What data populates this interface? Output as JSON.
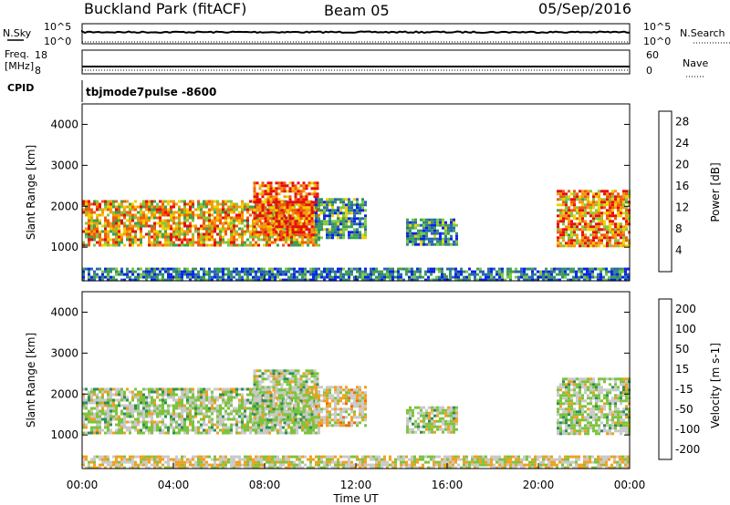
{
  "header": {
    "station": "Buckland Park (fitACF)",
    "beam": "Beam 05",
    "date": "05/Sep/2016"
  },
  "top_panels": {
    "nsky_label": "N.Sky",
    "nsky_scale_top": "10^5",
    "nsky_scale_bottom": "10^0",
    "nsearch_label": "N.Search",
    "freq_label_1": "Freq.",
    "freq_label_2": "[MHz]",
    "freq_scale_top": "18",
    "freq_scale_bottom": "8",
    "nave_label": "Nave",
    "nave_scale_top": "60",
    "nave_scale_bottom": "0",
    "cpid_label": "CPID",
    "cpid_value": "tbjmode7pulse -8600"
  },
  "chart_data": [
    {
      "type": "heatmap",
      "panel": "power",
      "ylabel": "Slant Range [km]",
      "ylim": [
        180,
        4500
      ],
      "yticks": [
        "1000",
        "2000",
        "3000",
        "4000"
      ],
      "colorbar_label": "Power [dB]",
      "colorbar_ticks": [
        "4",
        "8",
        "12",
        "16",
        "20",
        "24",
        "28"
      ],
      "colorbar_range": [
        0,
        30
      ],
      "colormap": [
        "#0b22e8",
        "#2a63b8",
        "#2e8a7a",
        "#3f9f4f",
        "#7fc840",
        "#f0d000",
        "#f39a10",
        "#f05b0b",
        "#e60d0d"
      ],
      "echo_regions": [
        {
          "t_start": 0.0,
          "t_end": 10.4,
          "range_min": 1050,
          "range_max": 2150,
          "power_db": 20
        },
        {
          "t_start": 7.5,
          "t_end": 10.3,
          "range_min": 1300,
          "range_max": 2600,
          "power_db": 26
        },
        {
          "t_start": 10.2,
          "t_end": 12.4,
          "range_min": 1200,
          "range_max": 2200,
          "power_db": 10
        },
        {
          "t_start": 14.2,
          "t_end": 16.4,
          "range_min": 1050,
          "range_max": 1700,
          "power_db": 9
        },
        {
          "t_start": 20.8,
          "t_end": 24.0,
          "range_min": 1050,
          "range_max": 2400,
          "power_db": 22
        },
        {
          "t_start": 0.0,
          "t_end": 24.0,
          "range_min": 180,
          "range_max": 500,
          "power_db": 7
        }
      ]
    },
    {
      "type": "heatmap",
      "panel": "velocity",
      "xlabel": "Time UT",
      "ylabel": "Slant Range [km]",
      "xticks": [
        "00:00",
        "04:00",
        "08:00",
        "12:00",
        "16:00",
        "20:00",
        "00:00"
      ],
      "xlim": [
        0,
        24
      ],
      "ylim": [
        180,
        4500
      ],
      "yticks": [
        "1000",
        "2000",
        "3000",
        "4000"
      ],
      "colorbar_label": "Velocity [m s-1]",
      "colorbar_ticks": [
        "200",
        "100",
        "50",
        "15",
        "-15",
        "-50",
        "-100",
        "-200"
      ],
      "colorbar_range": [
        -250,
        250
      ],
      "colormap": [
        "#1b2fc8",
        "#2a6b9a",
        "#2e8e58",
        "#7cc43e",
        "#c9c9c9",
        "#f0a020",
        "#f06a10",
        "#e60d0d"
      ],
      "echo_regions": [
        {
          "t_start": 0.0,
          "t_end": 10.4,
          "range_min": 1050,
          "range_max": 2150,
          "velocity": 0
        },
        {
          "t_start": 7.5,
          "t_end": 10.3,
          "range_min": 1300,
          "range_max": 2600,
          "velocity": 0
        },
        {
          "t_start": 10.2,
          "t_end": 12.4,
          "range_min": 1200,
          "range_max": 2200,
          "velocity": 60
        },
        {
          "t_start": 14.2,
          "t_end": 16.4,
          "range_min": 1050,
          "range_max": 1700,
          "velocity": 0
        },
        {
          "t_start": 20.8,
          "t_end": 24.0,
          "range_min": 1050,
          "range_max": 2400,
          "velocity": 0
        },
        {
          "t_start": 0.0,
          "t_end": 24.0,
          "range_min": 180,
          "range_max": 500,
          "velocity": 40
        }
      ]
    }
  ]
}
